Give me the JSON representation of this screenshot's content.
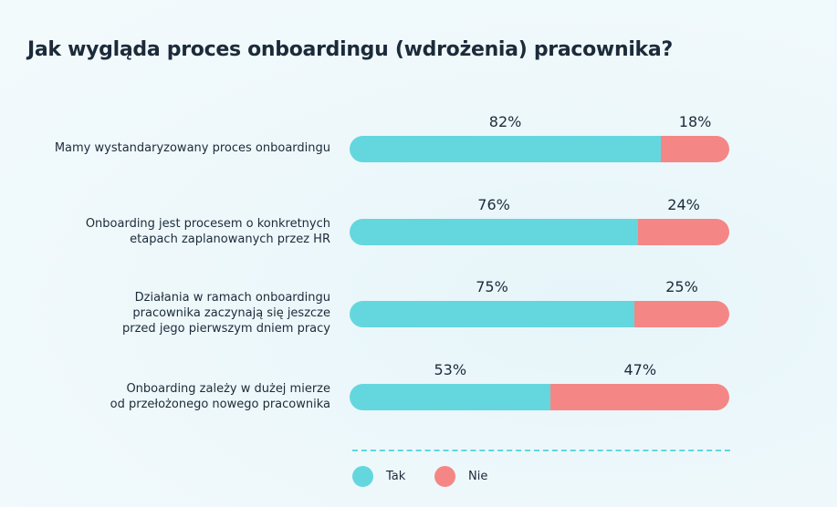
{
  "chart_data": {
    "type": "bar",
    "stacked": true,
    "orientation": "horizontal",
    "title": "Jak wygląda proces onboardingu (wdrożenia) pracownika?",
    "categories": [
      "Mamy wystandaryzowany proces onboardingu",
      "Onboarding jest procesem o konkretnych etapach zaplanowanych przez HR",
      "Działania w ramach onboardingu pracownika zaczynają się jeszcze przed jego pierwszym dniem pracy",
      "Onboarding zależy w dużej mierze od przełożonego nowego pracownika"
    ],
    "category_lines": [
      [
        "Mamy wystandaryzowany proces onboardingu"
      ],
      [
        "Onboarding jest procesem o konkretnych",
        "etapach zaplanowanych przez HR"
      ],
      [
        "Działania w ramach onboardingu",
        "pracownika zaczynają się jeszcze",
        "przed jego pierwszym dniem pracy"
      ],
      [
        "Onboarding zależy w dużej mierze",
        "od przełożonego nowego pracownika"
      ]
    ],
    "series": [
      {
        "name": "Tak",
        "color": "#64d7de",
        "values": [
          82,
          76,
          75,
          53
        ]
      },
      {
        "name": "Nie",
        "color": "#f48786",
        "values": [
          18,
          24,
          25,
          47
        ]
      }
    ],
    "value_suffix": "%",
    "xlim": [
      0,
      100
    ],
    "legend_position": "bottom-left",
    "grid": false
  }
}
